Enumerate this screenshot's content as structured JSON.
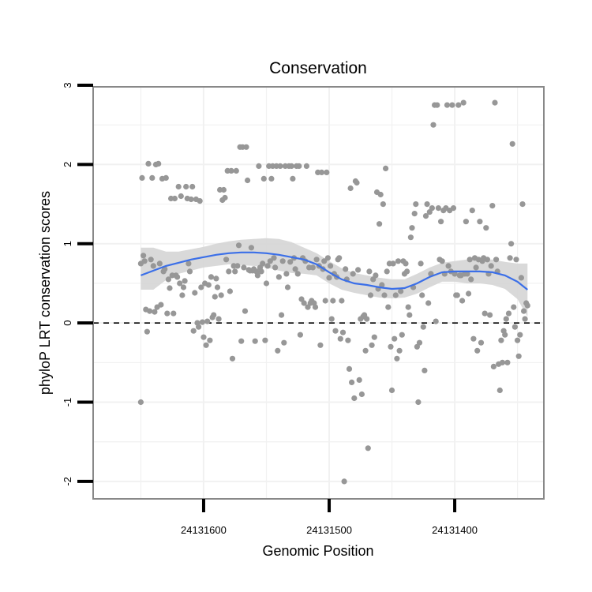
{
  "chart_data": {
    "type": "scatter",
    "title": "Conservation",
    "xlabel": "Genomic Position",
    "ylabel": "phyloP LRT conservation scores",
    "x_reversed": true,
    "xlim": [
      24131329,
      24131688
    ],
    "ylim": [
      -2.22,
      2.98
    ],
    "x_ticks": [
      {
        "value": 24131600,
        "label": "24131600"
      },
      {
        "value": 24131500,
        "label": "24131500"
      },
      {
        "value": 24131400,
        "label": "24131400"
      }
    ],
    "y_ticks": [
      {
        "value": -2,
        "label": "-2"
      },
      {
        "value": -1,
        "label": "-1"
      },
      {
        "value": 0,
        "label": "0"
      },
      {
        "value": 1,
        "label": "1"
      },
      {
        "value": 2,
        "label": "2"
      },
      {
        "value": 3,
        "label": "3"
      }
    ],
    "grid": true,
    "reference_line": {
      "y": 0,
      "style": "dashed"
    },
    "colors": {
      "points": "#979797",
      "smooth": "#3B6FE8",
      "band": "#D5D5D5",
      "grid": "#F1F1F1",
      "frame": "#888888"
    },
    "points": [
      [
        24131650,
        -1.0
      ],
      [
        24131650,
        0.75
      ],
      [
        24131649,
        1.83
      ],
      [
        24131648,
        0.85
      ],
      [
        24131647,
        0.78
      ],
      [
        24131646,
        0.17
      ],
      [
        24131645,
        -0.11
      ],
      [
        24131644,
        2.01
      ],
      [
        24131643,
        0.15
      ],
      [
        24131642,
        0.8
      ],
      [
        24131641,
        1.83
      ],
      [
        24131640,
        0.72
      ],
      [
        24131639,
        0.14
      ],
      [
        24131638,
        2.0
      ],
      [
        24131637,
        0.2
      ],
      [
        24131636,
        2.01
      ],
      [
        24131635,
        0.75
      ],
      [
        24131634,
        0.23
      ],
      [
        24131633,
        1.82
      ],
      [
        24131632,
        0.65
      ],
      [
        24131631,
        0.68
      ],
      [
        24131630,
        1.83
      ],
      [
        24131629,
        0.12
      ],
      [
        24131628,
        0.55
      ],
      [
        24131627,
        0.44
      ],
      [
        24131626,
        1.57
      ],
      [
        24131625,
        0.6
      ],
      [
        24131624,
        0.12
      ],
      [
        24131623,
        1.57
      ],
      [
        24131622,
        0.6
      ],
      [
        24131621,
        0.58
      ],
      [
        24131620,
        1.72
      ],
      [
        24131619,
        0.5
      ],
      [
        24131618,
        1.6
      ],
      [
        24131617,
        0.35
      ],
      [
        24131616,
        0.45
      ],
      [
        24131615,
        0.53
      ],
      [
        24131614,
        1.72
      ],
      [
        24131613,
        1.57
      ],
      [
        24131612,
        0.75
      ],
      [
        24131611,
        0.65
      ],
      [
        24131610,
        1.56
      ],
      [
        24131609,
        1.72
      ],
      [
        24131608,
        -0.1
      ],
      [
        24131607,
        0.38
      ],
      [
        24131606,
        1.56
      ],
      [
        24131605,
        0.0
      ],
      [
        24131604,
        -0.05
      ],
      [
        24131603,
        1.54
      ],
      [
        24131602,
        0.45
      ],
      [
        24131601,
        0.01
      ],
      [
        24131600,
        -0.18
      ],
      [
        24131599,
        0.5
      ],
      [
        24131598,
        -0.28
      ],
      [
        24131597,
        0.02
      ],
      [
        24131596,
        0.48
      ],
      [
        24131595,
        -0.22
      ],
      [
        24131594,
        0.58
      ],
      [
        24131593,
        0.07
      ],
      [
        24131592,
        0.1
      ],
      [
        24131591,
        0.33
      ],
      [
        24131590,
        0.56
      ],
      [
        24131589,
        0.45
      ],
      [
        24131588,
        0.05
      ],
      [
        24131587,
        1.68
      ],
      [
        24131586,
        0.35
      ],
      [
        24131585,
        1.55
      ],
      [
        24131584,
        1.68
      ],
      [
        24131583,
        1.58
      ],
      [
        24131582,
        0.8
      ],
      [
        24131581,
        1.92
      ],
      [
        24131580,
        0.65
      ],
      [
        24131579,
        0.4
      ],
      [
        24131578,
        1.92
      ],
      [
        24131577,
        -0.45
      ],
      [
        24131576,
        0.72
      ],
      [
        24131575,
        0.65
      ],
      [
        24131574,
        1.92
      ],
      [
        24131573,
        0.72
      ],
      [
        24131572,
        0.98
      ],
      [
        24131571,
        2.22
      ],
      [
        24131570,
        -0.23
      ],
      [
        24131569,
        2.22
      ],
      [
        24131568,
        0.7
      ],
      [
        24131567,
        0.15
      ],
      [
        24131566,
        2.22
      ],
      [
        24131565,
        1.8
      ],
      [
        24131564,
        0.67
      ],
      [
        24131563,
        0.66
      ],
      [
        24131562,
        0.95
      ],
      [
        24131561,
        0.66
      ],
      [
        24131560,
        0.68
      ],
      [
        24131559,
        -0.23
      ],
      [
        24131558,
        0.65
      ],
      [
        24131557,
        0.6
      ],
      [
        24131556,
        1.98
      ],
      [
        24131555,
        0.7
      ],
      [
        24131554,
        0.65
      ],
      [
        24131553,
        0.75
      ],
      [
        24131552,
        1.82
      ],
      [
        24131551,
        -0.22
      ],
      [
        24131550,
        0.5
      ],
      [
        24131549,
        0.72
      ],
      [
        24131548,
        1.98
      ],
      [
        24131547,
        0.78
      ],
      [
        24131546,
        1.82
      ],
      [
        24131545,
        1.98
      ],
      [
        24131544,
        0.82
      ],
      [
        24131543,
        0.7
      ],
      [
        24131542,
        1.98
      ],
      [
        24131541,
        -0.35
      ],
      [
        24131540,
        0.58
      ],
      [
        24131539,
        1.98
      ],
      [
        24131538,
        0.1
      ],
      [
        24131537,
        0.78
      ],
      [
        24131536,
        -0.25
      ],
      [
        24131535,
        1.98
      ],
      [
        24131534,
        0.62
      ],
      [
        24131533,
        0.45
      ],
      [
        24131532,
        1.98
      ],
      [
        24131531,
        0.77
      ],
      [
        24131530,
        1.98
      ],
      [
        24131529,
        1.82
      ],
      [
        24131528,
        0.82
      ],
      [
        24131527,
        0.68
      ],
      [
        24131526,
        1.98
      ],
      [
        24131525,
        0.62
      ],
      [
        24131524,
        1.98
      ],
      [
        24131523,
        -0.15
      ],
      [
        24131522,
        0.3
      ],
      [
        24131521,
        0.82
      ],
      [
        24131520,
        0.25
      ],
      [
        24131519,
        0.78
      ],
      [
        24131518,
        1.98
      ],
      [
        24131517,
        0.2
      ],
      [
        24131516,
        0.7
      ],
      [
        24131515,
        0.25
      ],
      [
        24131514,
        0.28
      ],
      [
        24131513,
        0.7
      ],
      [
        24131512,
        0.25
      ],
      [
        24131511,
        0.2
      ],
      [
        24131510,
        0.8
      ],
      [
        24131509,
        1.9
      ],
      [
        24131508,
        0.72
      ],
      [
        24131507,
        -0.28
      ],
      [
        24131506,
        1.9
      ],
      [
        24131505,
        0.68
      ],
      [
        24131504,
        0.78
      ],
      [
        24131503,
        0.28
      ],
      [
        24131502,
        1.9
      ],
      [
        24131501,
        0.82
      ],
      [
        24131500,
        0.57
      ],
      [
        24131499,
        0.72
      ],
      [
        24131498,
        0.05
      ],
      [
        24131497,
        0.28
      ],
      [
        24131496,
        0.62
      ],
      [
        24131495,
        -0.1
      ],
      [
        24131494,
        0.58
      ],
      [
        24131493,
        0.8
      ],
      [
        24131492,
        0.82
      ],
      [
        24131491,
        -0.2
      ],
      [
        24131490,
        0.28
      ],
      [
        24131489,
        -0.12
      ],
      [
        24131488,
        -2.0
      ],
      [
        24131487,
        0.68
      ],
      [
        24131486,
        0.55
      ],
      [
        24131485,
        -0.22
      ],
      [
        24131484,
        -0.58
      ],
      [
        24131483,
        1.7
      ],
      [
        24131482,
        -0.75
      ],
      [
        24131481,
        0.62
      ],
      [
        24131480,
        -0.95
      ],
      [
        24131479,
        1.79
      ],
      [
        24131478,
        1.77
      ],
      [
        24131477,
        0.67
      ],
      [
        24131476,
        -0.72
      ],
      [
        24131475,
        0.05
      ],
      [
        24131474,
        -0.9
      ],
      [
        24131473,
        0.08
      ],
      [
        24131472,
        0.1
      ],
      [
        24131471,
        -0.35
      ],
      [
        24131470,
        0.05
      ],
      [
        24131469,
        -1.58
      ],
      [
        24131468,
        0.65
      ],
      [
        24131467,
        0.35
      ],
      [
        24131466,
        -0.28
      ],
      [
        24131465,
        0.55
      ],
      [
        24131464,
        -0.18
      ],
      [
        24131463,
        0.6
      ],
      [
        24131462,
        1.65
      ],
      [
        24131461,
        0.43
      ],
      [
        24131460,
        1.25
      ],
      [
        24131459,
        1.62
      ],
      [
        24131458,
        0.48
      ],
      [
        24131457,
        1.5
      ],
      [
        24131456,
        0.35
      ],
      [
        24131455,
        1.95
      ],
      [
        24131454,
        0.65
      ],
      [
        24131453,
        0.2
      ],
      [
        24131452,
        0.75
      ],
      [
        24131451,
        -0.3
      ],
      [
        24131450,
        -0.85
      ],
      [
        24131449,
        0.75
      ],
      [
        24131448,
        -0.2
      ],
      [
        24131447,
        0.35
      ],
      [
        24131446,
        -0.45
      ],
      [
        24131445,
        0.78
      ],
      [
        24131444,
        -0.35
      ],
      [
        24131443,
        0.4
      ],
      [
        24131442,
        -0.15
      ],
      [
        24131441,
        0.78
      ],
      [
        24131440,
        0.62
      ],
      [
        24131439,
        0.75
      ],
      [
        24131438,
        0.65
      ],
      [
        24131437,
        0.2
      ],
      [
        24131436,
        0.1
      ],
      [
        24131435,
        1.08
      ],
      [
        24131434,
        1.2
      ],
      [
        24131433,
        0.45
      ],
      [
        24131432,
        1.38
      ],
      [
        24131431,
        1.5
      ],
      [
        24131430,
        -0.3
      ],
      [
        24131429,
        -1.0
      ],
      [
        24131428,
        -0.25
      ],
      [
        24131427,
        0.75
      ],
      [
        24131426,
        0.35
      ],
      [
        24131425,
        -0.05
      ],
      [
        24131424,
        -0.6
      ],
      [
        24131423,
        1.35
      ],
      [
        24131422,
        1.5
      ],
      [
        24131421,
        0.25
      ],
      [
        24131420,
        1.4
      ],
      [
        24131419,
        0.62
      ],
      [
        24131418,
        1.45
      ],
      [
        24131417,
        2.5
      ],
      [
        24131416,
        2.75
      ],
      [
        24131415,
        0.02
      ],
      [
        24131414,
        2.75
      ],
      [
        24131413,
        1.45
      ],
      [
        24131412,
        0.8
      ],
      [
        24131411,
        1.28
      ],
      [
        24131410,
        0.78
      ],
      [
        24131409,
        1.42
      ],
      [
        24131408,
        0.62
      ],
      [
        24131407,
        1.45
      ],
      [
        24131406,
        2.75
      ],
      [
        24131405,
        0.72
      ],
      [
        24131404,
        1.42
      ],
      [
        24131403,
        0.65
      ],
      [
        24131402,
        2.75
      ],
      [
        24131401,
        1.45
      ],
      [
        24131400,
        0.62
      ],
      [
        24131399,
        0.35
      ],
      [
        24131398,
        0.35
      ],
      [
        24131397,
        2.75
      ],
      [
        24131396,
        0.6
      ],
      [
        24131395,
        0.6
      ],
      [
        24131394,
        0.28
      ],
      [
        24131393,
        2.78
      ],
      [
        24131392,
        0.62
      ],
      [
        24131391,
        1.28
      ],
      [
        24131390,
        0.62
      ],
      [
        24131389,
        0.37
      ],
      [
        24131388,
        0.8
      ],
      [
        24131387,
        0.55
      ],
      [
        24131386,
        1.42
      ],
      [
        24131385,
        -0.2
      ],
      [
        24131384,
        0.82
      ],
      [
        24131383,
        0.7
      ],
      [
        24131382,
        -0.35
      ],
      [
        24131381,
        0.8
      ],
      [
        24131380,
        1.28
      ],
      [
        24131379,
        -0.25
      ],
      [
        24131378,
        0.78
      ],
      [
        24131377,
        0.82
      ],
      [
        24131376,
        0.12
      ],
      [
        24131375,
        1.2
      ],
      [
        24131374,
        0.8
      ],
      [
        24131373,
        0.62
      ],
      [
        24131372,
        0.1
      ],
      [
        24131371,
        0.72
      ],
      [
        24131370,
        1.48
      ],
      [
        24131369,
        -0.55
      ],
      [
        24131368,
        2.78
      ],
      [
        24131367,
        0.8
      ],
      [
        24131366,
        0.65
      ],
      [
        24131365,
        -0.52
      ],
      [
        24131364,
        -0.85
      ],
      [
        24131363,
        -0.22
      ],
      [
        24131362,
        -0.5
      ],
      [
        24131361,
        -0.1
      ],
      [
        24131360,
        -0.15
      ],
      [
        24131359,
        0.05
      ],
      [
        24131358,
        -0.5
      ],
      [
        24131357,
        0.12
      ],
      [
        24131356,
        0.82
      ],
      [
        24131355,
        1.0
      ],
      [
        24131354,
        2.26
      ],
      [
        24131353,
        0.2
      ],
      [
        24131352,
        -0.05
      ],
      [
        24131351,
        0.8
      ],
      [
        24131350,
        -0.22
      ],
      [
        24131349,
        -0.42
      ],
      [
        24131348,
        -0.15
      ],
      [
        24131347,
        0.57
      ],
      [
        24131346,
        1.5
      ],
      [
        24131345,
        0.15
      ],
      [
        24131344,
        0.05
      ],
      [
        24131343,
        0.25
      ],
      [
        24131342,
        0.22
      ]
    ],
    "smooth_curve": [
      [
        24131650,
        0.6
      ],
      [
        24131640,
        0.66
      ],
      [
        24131630,
        0.72
      ],
      [
        24131620,
        0.76
      ],
      [
        24131610,
        0.8
      ],
      [
        24131600,
        0.83
      ],
      [
        24131590,
        0.86
      ],
      [
        24131580,
        0.88
      ],
      [
        24131570,
        0.89
      ],
      [
        24131560,
        0.89
      ],
      [
        24131550,
        0.88
      ],
      [
        24131540,
        0.86
      ],
      [
        24131530,
        0.83
      ],
      [
        24131520,
        0.8
      ],
      [
        24131510,
        0.74
      ],
      [
        24131500,
        0.64
      ],
      [
        24131490,
        0.55
      ],
      [
        24131480,
        0.5
      ],
      [
        24131470,
        0.48
      ],
      [
        24131460,
        0.45
      ],
      [
        24131450,
        0.43
      ],
      [
        24131440,
        0.44
      ],
      [
        24131430,
        0.5
      ],
      [
        24131420,
        0.58
      ],
      [
        24131410,
        0.64
      ],
      [
        24131400,
        0.65
      ],
      [
        24131390,
        0.65
      ],
      [
        24131380,
        0.65
      ],
      [
        24131370,
        0.64
      ],
      [
        24131360,
        0.6
      ],
      [
        24131350,
        0.52
      ],
      [
        24131342,
        0.42
      ]
    ],
    "confidence_band": {
      "upper": [
        0.95,
        0.95,
        0.9,
        0.9,
        0.93,
        0.96,
        1.0,
        1.03,
        1.05,
        1.06,
        1.07,
        1.06,
        1.02,
        0.95,
        0.88,
        0.78,
        0.69,
        0.63,
        0.6,
        0.57,
        0.55,
        0.55,
        0.62,
        0.7,
        0.76,
        0.78,
        0.8,
        0.8,
        0.8,
        0.77,
        0.75,
        0.75
      ],
      "lower": [
        0.42,
        0.42,
        0.54,
        0.62,
        0.66,
        0.7,
        0.72,
        0.74,
        0.73,
        0.72,
        0.7,
        0.66,
        0.63,
        0.62,
        0.6,
        0.5,
        0.42,
        0.38,
        0.35,
        0.32,
        0.31,
        0.32,
        0.37,
        0.45,
        0.52,
        0.52,
        0.5,
        0.5,
        0.48,
        0.43,
        0.3,
        0.08
      ]
    }
  }
}
